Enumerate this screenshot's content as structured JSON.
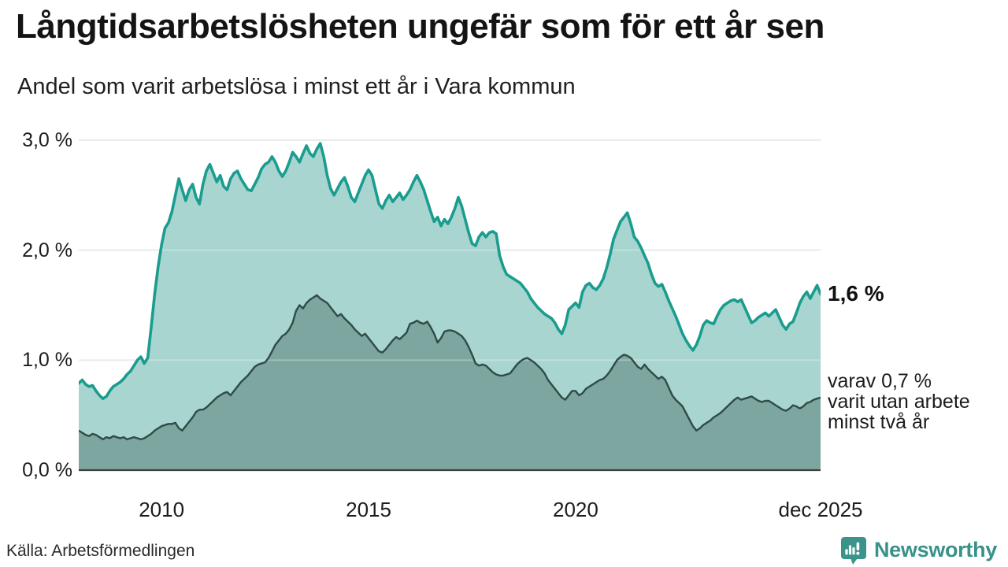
{
  "title": "Långtidsarbetslösheten ungefär som för ett år sen",
  "subtitle": "Andel som varit arbetslösa i minst ett år i Vara kommun",
  "source": "Källa: Arbetsförmedlingen",
  "brand": {
    "name": "Newsworthy",
    "color": "#38928A"
  },
  "annotations": {
    "latest_total": "1,6 %",
    "breakdown": [
      "varav 0,7 %",
      "varit utan arbete",
      "minst två år"
    ]
  },
  "colors": {
    "series1_line": "#1A9C8E",
    "series1_fill": "#A8D5CF",
    "series2_line": "#304B46",
    "series2_fill": "#7CA69F",
    "gridline": "#E2E3E6",
    "zero_line": "#3E3E3E"
  },
  "chart_data": {
    "type": "area",
    "title": "Långtidsarbetslösheten ungefär som för ett år sen",
    "subtitle": "Andel som varit arbetslösa i minst ett år i Vara kommun",
    "unit": "%",
    "x_start": "2008-01",
    "x_end": "2025-12",
    "ylim": [
      0,
      3
    ],
    "grid": true,
    "y_ticks": [
      {
        "label": "3,0 %",
        "value": 3
      },
      {
        "label": "2,0 %",
        "value": 2
      },
      {
        "label": "1,0 %",
        "value": 1
      },
      {
        "label": "0,0 %",
        "value": 0
      }
    ],
    "x_ticks": [
      {
        "label": "2010",
        "index": 24
      },
      {
        "label": "2015",
        "index": 84
      },
      {
        "label": "2020",
        "index": 144
      },
      {
        "label": "dec 2025",
        "index": 215
      }
    ],
    "series": [
      {
        "name": "minst ett år",
        "latest_value": 1.6,
        "values": [
          0.79,
          0.82,
          0.78,
          0.76,
          0.77,
          0.72,
          0.68,
          0.65,
          0.67,
          0.72,
          0.76,
          0.78,
          0.8,
          0.83,
          0.87,
          0.9,
          0.95,
          1.0,
          1.03,
          0.97,
          1.02,
          1.3,
          1.6,
          1.85,
          2.05,
          2.2,
          2.25,
          2.35,
          2.5,
          2.65,
          2.55,
          2.45,
          2.55,
          2.6,
          2.48,
          2.42,
          2.6,
          2.72,
          2.78,
          2.7,
          2.62,
          2.68,
          2.58,
          2.55,
          2.65,
          2.7,
          2.72,
          2.65,
          2.6,
          2.55,
          2.54,
          2.6,
          2.66,
          2.74,
          2.78,
          2.8,
          2.85,
          2.8,
          2.72,
          2.67,
          2.72,
          2.8,
          2.89,
          2.85,
          2.8,
          2.88,
          2.95,
          2.88,
          2.85,
          2.92,
          2.97,
          2.85,
          2.68,
          2.56,
          2.5,
          2.56,
          2.62,
          2.66,
          2.58,
          2.48,
          2.44,
          2.52,
          2.6,
          2.68,
          2.73,
          2.68,
          2.55,
          2.42,
          2.38,
          2.45,
          2.5,
          2.44,
          2.48,
          2.52,
          2.46,
          2.5,
          2.55,
          2.62,
          2.68,
          2.62,
          2.55,
          2.45,
          2.35,
          2.26,
          2.3,
          2.22,
          2.28,
          2.24,
          2.3,
          2.38,
          2.48,
          2.4,
          2.28,
          2.16,
          2.06,
          2.04,
          2.12,
          2.16,
          2.12,
          2.16,
          2.17,
          2.15,
          1.95,
          1.85,
          1.78,
          1.76,
          1.74,
          1.72,
          1.7,
          1.66,
          1.62,
          1.56,
          1.52,
          1.48,
          1.45,
          1.42,
          1.4,
          1.38,
          1.34,
          1.28,
          1.24,
          1.32,
          1.46,
          1.49,
          1.52,
          1.48,
          1.62,
          1.68,
          1.7,
          1.66,
          1.64,
          1.68,
          1.74,
          1.84,
          1.96,
          2.1,
          2.18,
          2.26,
          2.3,
          2.34,
          2.24,
          2.12,
          2.08,
          2.02,
          1.95,
          1.88,
          1.78,
          1.7,
          1.67,
          1.69,
          1.62,
          1.54,
          1.47,
          1.4,
          1.32,
          1.24,
          1.18,
          1.13,
          1.09,
          1.14,
          1.22,
          1.32,
          1.36,
          1.34,
          1.33,
          1.4,
          1.46,
          1.5,
          1.52,
          1.54,
          1.55,
          1.53,
          1.55,
          1.48,
          1.41,
          1.34,
          1.36,
          1.39,
          1.41,
          1.43,
          1.4,
          1.43,
          1.46,
          1.39,
          1.32,
          1.28,
          1.33,
          1.35,
          1.43,
          1.52,
          1.58,
          1.62,
          1.56,
          1.62,
          1.68,
          1.6
        ]
      },
      {
        "name": "minst två år",
        "latest_value": 0.7,
        "values": [
          0.36,
          0.34,
          0.32,
          0.31,
          0.33,
          0.32,
          0.3,
          0.28,
          0.3,
          0.29,
          0.31,
          0.3,
          0.29,
          0.3,
          0.28,
          0.29,
          0.3,
          0.29,
          0.28,
          0.29,
          0.31,
          0.33,
          0.36,
          0.38,
          0.4,
          0.41,
          0.42,
          0.42,
          0.43,
          0.38,
          0.36,
          0.4,
          0.44,
          0.48,
          0.53,
          0.55,
          0.55,
          0.57,
          0.6,
          0.63,
          0.66,
          0.68,
          0.7,
          0.71,
          0.68,
          0.72,
          0.76,
          0.8,
          0.83,
          0.86,
          0.9,
          0.94,
          0.96,
          0.97,
          0.98,
          1.02,
          1.08,
          1.14,
          1.18,
          1.22,
          1.24,
          1.28,
          1.34,
          1.45,
          1.5,
          1.47,
          1.52,
          1.55,
          1.57,
          1.59,
          1.56,
          1.54,
          1.52,
          1.48,
          1.44,
          1.4,
          1.42,
          1.38,
          1.35,
          1.32,
          1.28,
          1.25,
          1.22,
          1.24,
          1.2,
          1.16,
          1.12,
          1.08,
          1.07,
          1.1,
          1.14,
          1.18,
          1.21,
          1.19,
          1.22,
          1.25,
          1.33,
          1.34,
          1.36,
          1.34,
          1.33,
          1.35,
          1.3,
          1.24,
          1.16,
          1.2,
          1.26,
          1.27,
          1.27,
          1.26,
          1.24,
          1.22,
          1.18,
          1.12,
          1.05,
          0.97,
          0.95,
          0.96,
          0.95,
          0.92,
          0.89,
          0.87,
          0.86,
          0.86,
          0.87,
          0.88,
          0.92,
          0.96,
          0.99,
          1.01,
          1.02,
          1.0,
          0.98,
          0.95,
          0.92,
          0.88,
          0.82,
          0.78,
          0.74,
          0.7,
          0.66,
          0.64,
          0.68,
          0.72,
          0.72,
          0.68,
          0.7,
          0.74,
          0.76,
          0.78,
          0.8,
          0.82,
          0.83,
          0.86,
          0.9,
          0.95,
          1.0,
          1.03,
          1.05,
          1.04,
          1.02,
          0.98,
          0.94,
          0.92,
          0.96,
          0.92,
          0.89,
          0.86,
          0.83,
          0.85,
          0.82,
          0.75,
          0.68,
          0.64,
          0.61,
          0.58,
          0.52,
          0.46,
          0.4,
          0.36,
          0.38,
          0.41,
          0.43,
          0.45,
          0.48,
          0.5,
          0.52,
          0.55,
          0.58,
          0.61,
          0.64,
          0.66,
          0.64,
          0.65,
          0.66,
          0.67,
          0.65,
          0.63,
          0.62,
          0.63,
          0.63,
          0.61,
          0.59,
          0.57,
          0.55,
          0.54,
          0.56,
          0.59,
          0.58,
          0.56,
          0.58,
          0.61,
          0.62,
          0.64,
          0.65,
          0.66
        ]
      }
    ]
  }
}
